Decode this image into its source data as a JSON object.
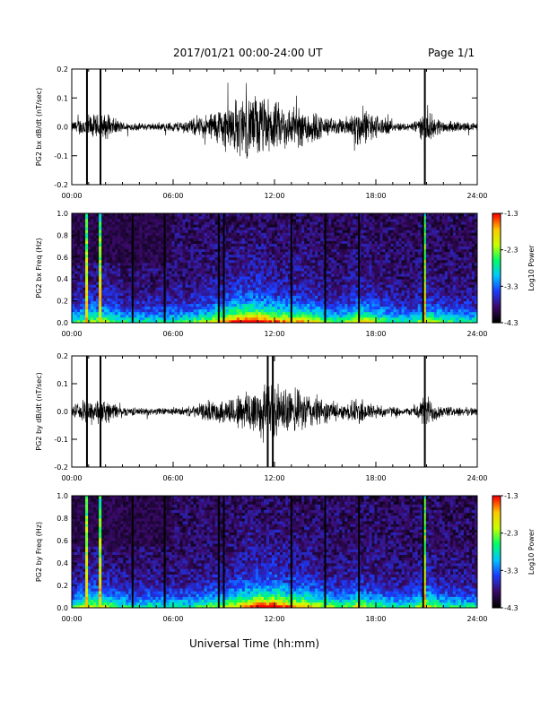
{
  "header": {
    "date_range": "2017/01/21  00:00-24:00 UT",
    "page": "Page 1/1"
  },
  "x_axis": {
    "label": "Universal Time (hh:mm)",
    "ticks": [
      "00:00",
      "06:00",
      "12:00",
      "18:00",
      "24:00"
    ]
  },
  "colors": {
    "trace": "#000000",
    "spectrogram_background": "#3a0a5a",
    "colormap": [
      "#000000",
      "#3b0b6b",
      "#1a3cff",
      "#00c8ff",
      "#00ff64",
      "#c8ff00",
      "#ffc800",
      "#ff0000"
    ]
  },
  "chart_data": [
    {
      "type": "line",
      "ylabel": "PG2 bx dB/dt (nT/sec)",
      "xlim": [
        0,
        24
      ],
      "ylim": [
        -0.2,
        0.2
      ],
      "yticks": [
        "-0.2",
        "-0.1",
        "0.0",
        "0.1",
        "0.2"
      ],
      "activity_envelope": {
        "hours": [
          0,
          1,
          2,
          3,
          4,
          5,
          6,
          7,
          8,
          9,
          10,
          11,
          12,
          13,
          14,
          15,
          16,
          17,
          18,
          19,
          20,
          21,
          22,
          23,
          24
        ],
        "amplitude": [
          0.02,
          0.05,
          0.05,
          0.02,
          0.015,
          0.015,
          0.02,
          0.03,
          0.05,
          0.09,
          0.12,
          0.13,
          0.1,
          0.08,
          0.08,
          0.04,
          0.03,
          0.08,
          0.05,
          0.02,
          0.015,
          0.06,
          0.025,
          0.02,
          0.015
        ]
      },
      "saturated_spikes_hours": [
        0.9,
        1.7,
        20.9
      ]
    },
    {
      "type": "heatmap",
      "ylabel": "PG2 bx Freq (Hz)",
      "xlim": [
        0,
        24
      ],
      "ylim": [
        0.0,
        1.0
      ],
      "yticks": [
        "0.0",
        "0.2",
        "0.4",
        "0.6",
        "0.8",
        "1.0"
      ],
      "colorbar": {
        "label": "Log10 Power",
        "ticks": [
          "-1.3",
          "-2.3",
          "-3.3",
          "-4.3"
        ],
        "range": [
          -4.3,
          -1.3
        ]
      },
      "broadband_event_hours": [
        0.9,
        1.7,
        20.9
      ],
      "gap_hours": [
        3.6,
        5.5,
        8.7,
        9.0,
        13.0,
        15.0,
        17.0,
        20.8
      ]
    },
    {
      "type": "line",
      "ylabel": "PG2 by dB/dt (nT/sec)",
      "xlim": [
        0,
        24
      ],
      "ylim": [
        -0.2,
        0.2
      ],
      "yticks": [
        "-0.2",
        "-0.1",
        "0.0",
        "0.1",
        "0.2"
      ],
      "activity_envelope": {
        "hours": [
          0,
          1,
          2,
          3,
          4,
          5,
          6,
          7,
          8,
          9,
          10,
          11,
          12,
          13,
          14,
          15,
          16,
          17,
          18,
          19,
          20,
          21,
          22,
          23,
          24
        ],
        "amplitude": [
          0.015,
          0.06,
          0.05,
          0.02,
          0.015,
          0.015,
          0.015,
          0.02,
          0.04,
          0.05,
          0.08,
          0.12,
          0.12,
          0.09,
          0.08,
          0.05,
          0.03,
          0.06,
          0.03,
          0.02,
          0.015,
          0.07,
          0.02,
          0.02,
          0.015
        ]
      },
      "saturated_spikes_hours": [
        0.9,
        1.7,
        11.6,
        11.9,
        20.9
      ]
    },
    {
      "type": "heatmap",
      "ylabel": "PG2 by Freq (Hz)",
      "xlim": [
        0,
        24
      ],
      "ylim": [
        0.0,
        1.0
      ],
      "yticks": [
        "0.0",
        "0.2",
        "0.4",
        "0.6",
        "0.8",
        "1.0"
      ],
      "colorbar": {
        "label": "Log10 Power",
        "ticks": [
          "-1.3",
          "-2.3",
          "-3.3",
          "-4.3"
        ],
        "range": [
          -4.3,
          -1.3
        ]
      },
      "broadband_event_hours": [
        0.9,
        1.7,
        20.9
      ],
      "gap_hours": [
        3.6,
        5.5,
        8.7,
        9.0,
        13.0,
        15.0,
        17.0,
        20.8
      ]
    }
  ]
}
